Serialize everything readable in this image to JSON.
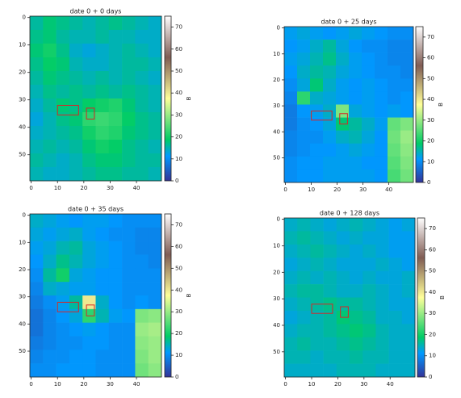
{
  "chart_data": [
    {
      "type": "heatmap",
      "title": "date 0 + 0 days",
      "cmap": "terrain",
      "x_edges": [
        -0.5,
        4.5,
        9.5,
        14.5,
        19.5,
        24.5,
        29.5,
        34.5,
        39.5,
        44.5,
        49.5
      ],
      "y_edges": [
        -0.5,
        4.5,
        9.5,
        14.5,
        19.5,
        24.5,
        29.5,
        34.5,
        39.5,
        44.5,
        49.5,
        54.5,
        59.5
      ],
      "values": [
        [
          16,
          18,
          17,
          16,
          15,
          16,
          17,
          16,
          15,
          14
        ],
        [
          17,
          18,
          16,
          15,
          15,
          16,
          15,
          15,
          14,
          14
        ],
        [
          18,
          20,
          17,
          14,
          13,
          14,
          15,
          16,
          15,
          14
        ],
        [
          17,
          19,
          18,
          15,
          14,
          14,
          15,
          16,
          16,
          15
        ],
        [
          16,
          18,
          17,
          16,
          15,
          16,
          15,
          16,
          15,
          14
        ],
        [
          15,
          17,
          16,
          17,
          16,
          17,
          16,
          17,
          16,
          15
        ],
        [
          14,
          16,
          18,
          17,
          19,
          20,
          21,
          18,
          16,
          15
        ],
        [
          13,
          15,
          17,
          18,
          22,
          23,
          22,
          19,
          17,
          16
        ],
        [
          14,
          15,
          16,
          17,
          20,
          22,
          21,
          18,
          17,
          16
        ],
        [
          15,
          16,
          15,
          16,
          18,
          20,
          19,
          17,
          16,
          15
        ],
        [
          16,
          15,
          14,
          15,
          17,
          18,
          18,
          17,
          16,
          16
        ],
        [
          15,
          14,
          14,
          15,
          16,
          17,
          17,
          16,
          16,
          15
        ]
      ],
      "boxes": [
        {
          "x": [
            10,
            18
          ],
          "y": [
            32,
            35.5
          ],
          "color": "#d62728"
        },
        {
          "x": [
            21,
            24
          ],
          "y": [
            33,
            37
          ],
          "color": "#d62728"
        }
      ],
      "xlim": [
        -0.5,
        49.5
      ],
      "ylim": [
        59.5,
        -0.5
      ],
      "xticks": [
        0,
        10,
        20,
        30,
        40
      ],
      "yticks": [
        0,
        10,
        20,
        30,
        40,
        50
      ],
      "clim": [
        0,
        75
      ],
      "cticks": [
        0,
        10,
        20,
        30,
        40,
        50,
        60,
        70
      ],
      "clabel": "B"
    },
    {
      "type": "heatmap",
      "title": "date 0 + 25 days",
      "cmap": "terrain",
      "x_edges": [
        -0.5,
        4.5,
        9.5,
        14.5,
        19.5,
        24.5,
        29.5,
        34.5,
        39.5,
        44.5,
        49.5
      ],
      "y_edges": [
        -0.5,
        4.5,
        9.5,
        14.5,
        19.5,
        24.5,
        29.5,
        34.5,
        39.5,
        44.5,
        49.5,
        54.5,
        59.5
      ],
      "values": [
        [
          12,
          13,
          12,
          11,
          12,
          13,
          12,
          11,
          10,
          10
        ],
        [
          11,
          12,
          14,
          16,
          13,
          11,
          10,
          10,
          9,
          9
        ],
        [
          12,
          13,
          15,
          17,
          14,
          12,
          11,
          10,
          9,
          9
        ],
        [
          11,
          14,
          16,
          15,
          13,
          12,
          11,
          10,
          10,
          9
        ],
        [
          10,
          13,
          18,
          14,
          12,
          11,
          12,
          11,
          10,
          10
        ],
        [
          9,
          22,
          14,
          13,
          12,
          11,
          12,
          11,
          10,
          11
        ],
        [
          8,
          11,
          12,
          14,
          28,
          13,
          12,
          11,
          12,
          11
        ],
        [
          8,
          10,
          11,
          13,
          18,
          16,
          14,
          12,
          26,
          28
        ],
        [
          9,
          10,
          10,
          12,
          14,
          15,
          13,
          11,
          27,
          30
        ],
        [
          9,
          10,
          11,
          11,
          12,
          13,
          12,
          11,
          26,
          29
        ],
        [
          10,
          11,
          11,
          12,
          12,
          12,
          11,
          11,
          25,
          28
        ],
        [
          10,
          11,
          11,
          12,
          12,
          12,
          12,
          11,
          24,
          27
        ]
      ],
      "boxes": [
        {
          "x": [
            10,
            18
          ],
          "y": [
            32,
            35.5
          ],
          "color": "#d62728"
        },
        {
          "x": [
            21,
            24
          ],
          "y": [
            33,
            37
          ],
          "color": "#d62728"
        }
      ],
      "xlim": [
        -0.5,
        49.5
      ],
      "ylim": [
        59.5,
        -0.5
      ],
      "xticks": [
        0,
        10,
        20,
        30,
        40
      ],
      "yticks": [
        0,
        10,
        20,
        30,
        40,
        50
      ],
      "clim": [
        0,
        75
      ],
      "cticks": [
        0,
        10,
        20,
        30,
        40,
        50,
        60,
        70
      ],
      "clabel": "B"
    },
    {
      "type": "heatmap",
      "title": "date 0 + 35 days",
      "cmap": "terrain",
      "x_edges": [
        -0.5,
        4.5,
        9.5,
        14.5,
        19.5,
        24.5,
        29.5,
        34.5,
        39.5,
        44.5,
        49.5
      ],
      "y_edges": [
        -0.5,
        4.5,
        9.5,
        14.5,
        19.5,
        24.5,
        29.5,
        34.5,
        39.5,
        44.5,
        49.5,
        54.5,
        59.5
      ],
      "values": [
        [
          14,
          13,
          12,
          11,
          12,
          12,
          11,
          10,
          10,
          10
        ],
        [
          13,
          12,
          13,
          14,
          12,
          11,
          10,
          10,
          9,
          9
        ],
        [
          12,
          13,
          15,
          16,
          13,
          12,
          11,
          10,
          9,
          9
        ],
        [
          11,
          14,
          17,
          15,
          13,
          12,
          11,
          10,
          10,
          9
        ],
        [
          10,
          16,
          20,
          13,
          12,
          11,
          11,
          10,
          10,
          10
        ],
        [
          9,
          14,
          13,
          12,
          12,
          11,
          11,
          10,
          10,
          10
        ],
        [
          8,
          10,
          12,
          16,
          40,
          14,
          11,
          10,
          11,
          10
        ],
        [
          7,
          9,
          11,
          13,
          22,
          15,
          12,
          11,
          28,
          29
        ],
        [
          7,
          9,
          10,
          11,
          12,
          11,
          10,
          10,
          30,
          31
        ],
        [
          8,
          9,
          10,
          10,
          11,
          11,
          10,
          10,
          29,
          30
        ],
        [
          9,
          10,
          10,
          11,
          11,
          10,
          10,
          10,
          28,
          30
        ],
        [
          10,
          10,
          11,
          11,
          11,
          10,
          10,
          10,
          27,
          29
        ]
      ],
      "boxes": [
        {
          "x": [
            10,
            18
          ],
          "y": [
            32,
            35.5
          ],
          "color": "#d62728"
        },
        {
          "x": [
            21,
            24
          ],
          "y": [
            33,
            37
          ],
          "color": "#d62728"
        }
      ],
      "xlim": [
        -0.5,
        49.5
      ],
      "ylim": [
        59.5,
        -0.5
      ],
      "xticks": [
        0,
        10,
        20,
        30,
        40
      ],
      "yticks": [
        0,
        10,
        20,
        30,
        40,
        50
      ],
      "clim": [
        0,
        75
      ],
      "cticks": [
        0,
        10,
        20,
        30,
        40,
        50,
        60,
        70
      ],
      "clabel": "B"
    },
    {
      "type": "heatmap",
      "title": "date 0 + 128 days",
      "cmap": "terrain",
      "x_edges": [
        -0.5,
        4.5,
        9.5,
        14.5,
        19.5,
        24.5,
        29.5,
        34.5,
        39.5,
        44.5,
        49.5
      ],
      "y_edges": [
        -0.5,
        4.5,
        9.5,
        14.5,
        19.5,
        24.5,
        29.5,
        34.5,
        39.5,
        44.5,
        49.5,
        54.5,
        59.5
      ],
      "values": [
        [
          14,
          15,
          14,
          13,
          14,
          15,
          14,
          13,
          12,
          13
        ],
        [
          15,
          16,
          15,
          14,
          13,
          14,
          13,
          13,
          12,
          12
        ],
        [
          14,
          15,
          16,
          15,
          14,
          13,
          14,
          13,
          12,
          12
        ],
        [
          13,
          14,
          15,
          14,
          13,
          13,
          13,
          14,
          13,
          12
        ],
        [
          14,
          15,
          14,
          15,
          14,
          13,
          14,
          13,
          13,
          14
        ],
        [
          15,
          16,
          16,
          15,
          14,
          14,
          15,
          14,
          13,
          14
        ],
        [
          14,
          15,
          16,
          17,
          16,
          16,
          15,
          14,
          13,
          13
        ],
        [
          13,
          14,
          15,
          16,
          18,
          17,
          16,
          14,
          14,
          13
        ],
        [
          14,
          15,
          15,
          16,
          17,
          18,
          17,
          15,
          14,
          14
        ],
        [
          15,
          16,
          15,
          15,
          16,
          17,
          16,
          15,
          14,
          14
        ],
        [
          15,
          15,
          14,
          15,
          15,
          16,
          15,
          15,
          14,
          14
        ],
        [
          14,
          14,
          14,
          14,
          15,
          15,
          15,
          14,
          14,
          14
        ]
      ],
      "boxes": [
        {
          "x": [
            10,
            18
          ],
          "y": [
            32,
            35.5
          ],
          "color": "#d62728"
        },
        {
          "x": [
            21,
            24
          ],
          "y": [
            33,
            37
          ],
          "color": "#d62728"
        }
      ],
      "xlim": [
        -0.5,
        49.5
      ],
      "ylim": [
        59.5,
        -0.5
      ],
      "xticks": [
        0,
        10,
        20,
        30,
        40
      ],
      "yticks": [
        0,
        10,
        20,
        30,
        40,
        50
      ],
      "clim": [
        0,
        75
      ],
      "cticks": [
        0,
        10,
        20,
        30,
        40,
        50,
        60,
        70
      ],
      "clabel": "B"
    }
  ]
}
